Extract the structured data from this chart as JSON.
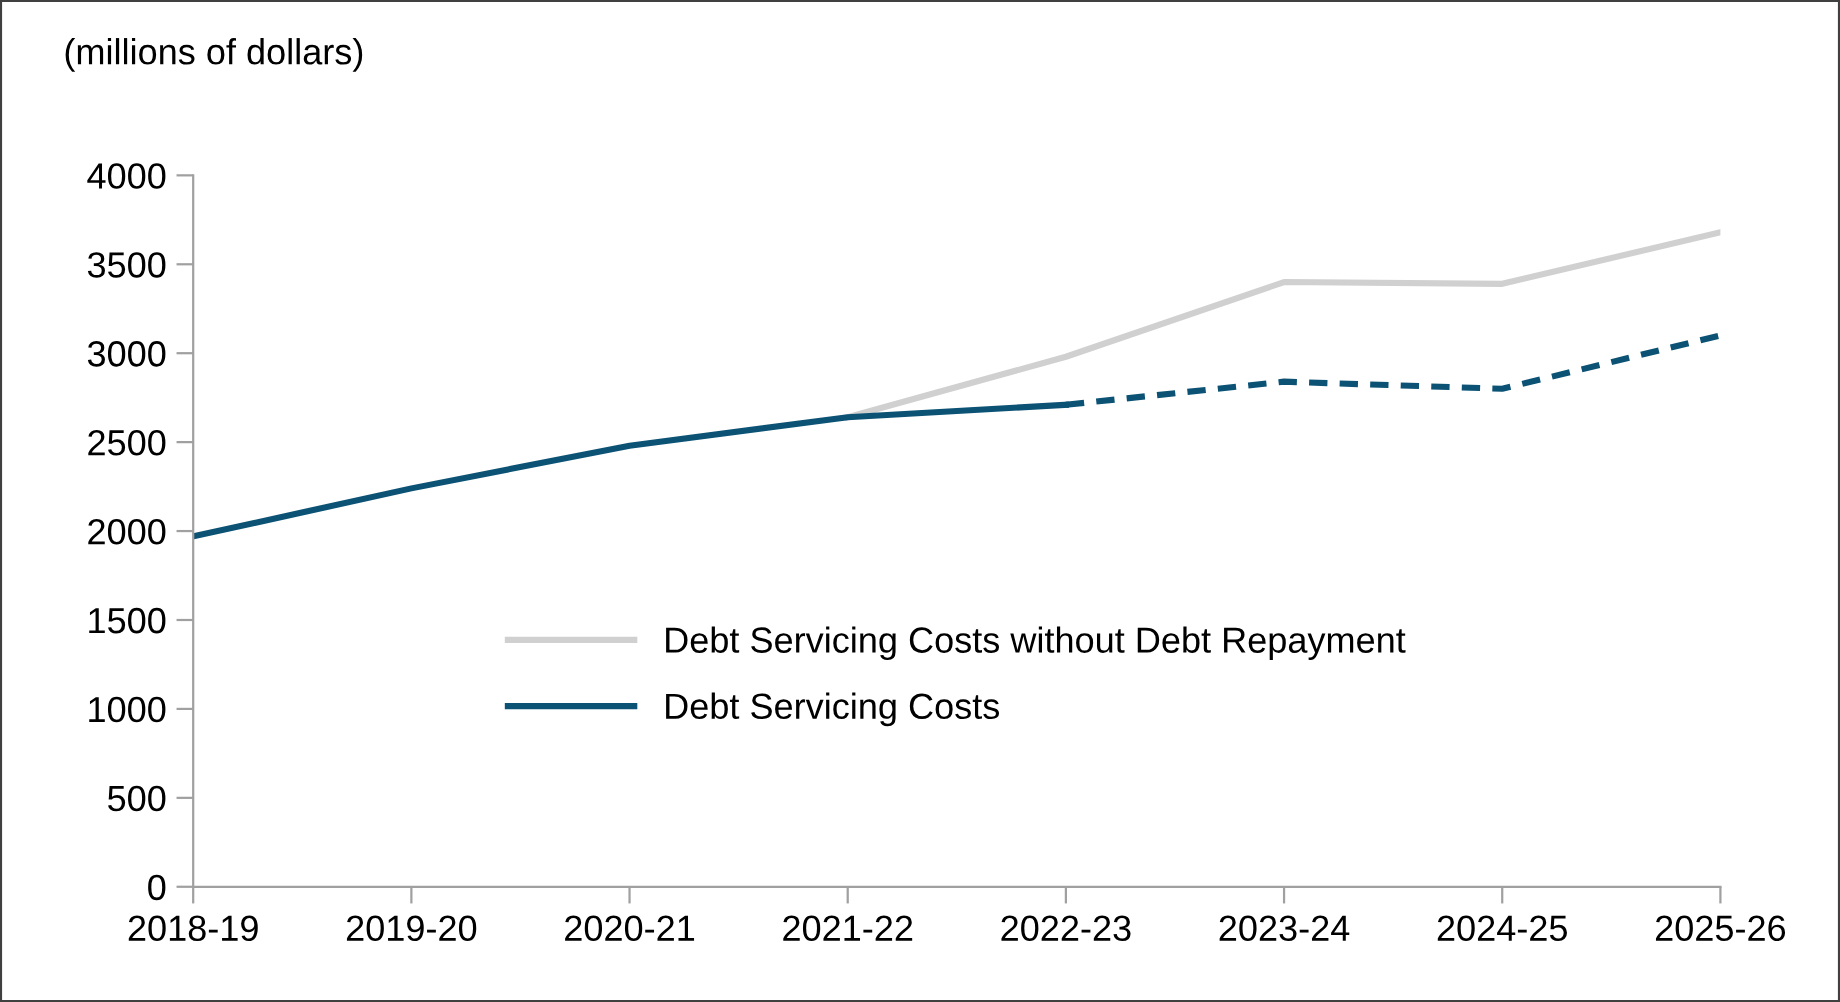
{
  "chart_data": {
    "type": "line",
    "title": "(millions of dollars)",
    "categories": [
      "2018-19",
      "2019-20",
      "2020-21",
      "2021-22",
      "2022-23",
      "2023-24",
      "2024-25",
      "2025-26"
    ],
    "series": [
      {
        "name": "Debt Servicing Costs without Debt Repayment",
        "color": "#d0d0d0",
        "line_style": "solid",
        "values": [
          null,
          null,
          null,
          2640,
          2980,
          3400,
          3390,
          3680
        ]
      },
      {
        "name": "Debt Servicing Costs",
        "color": "#0b5274",
        "line_style": "solid",
        "values": [
          1970,
          2240,
          2480,
          2640,
          2710,
          null,
          null,
          null
        ]
      },
      {
        "color": "#0b5274",
        "line_style": "dashed",
        "values": [
          null,
          null,
          null,
          null,
          2710,
          2840,
          2800,
          3100
        ]
      }
    ],
    "ylim": [
      0,
      4000
    ],
    "yticks": [
      0,
      500,
      1000,
      1500,
      2000,
      2500,
      3000,
      3500,
      4000
    ],
    "grid": false,
    "legend": "bottom",
    "marker": "none"
  }
}
